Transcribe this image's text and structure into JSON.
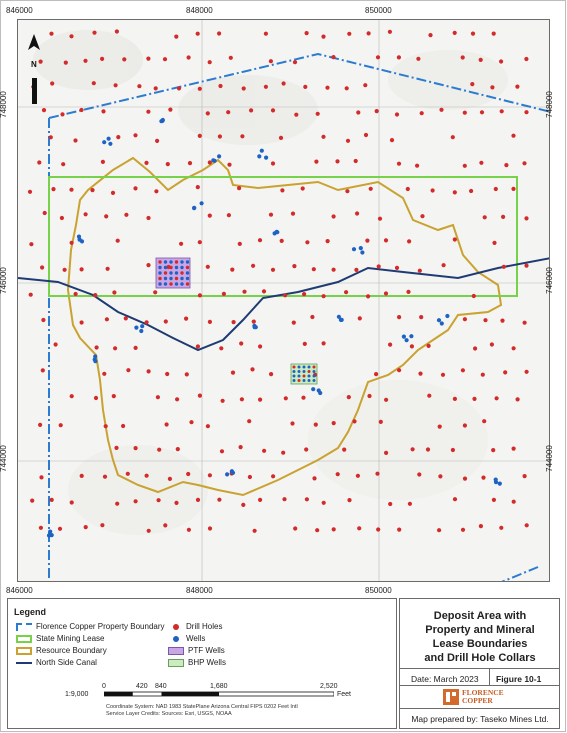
{
  "map": {
    "x_ticks": [
      "846000",
      "848000",
      "850000"
    ],
    "y_ticks_left": [
      "748000",
      "746000",
      "744000"
    ],
    "y_ticks_right": [
      "748000",
      "746000",
      "744000"
    ],
    "north_label": "N",
    "colors": {
      "property_boundary": "#2b7bd0",
      "state_lease": "#77d24a",
      "resource_boundary": "#c9a230",
      "canal": "#1f3b73",
      "drill_holes": "#d32a2a",
      "wells": "#1e63c4",
      "ptf_wells": "#c9a6e6",
      "bhp_wells": "#ccebc0"
    }
  },
  "legend": {
    "title": "Legend",
    "items": {
      "property": "Florence Copper Property Boundary",
      "state_lease": "State Mining Lease",
      "resource": "Resource Boundary",
      "canal": "North Side Canal",
      "drill_holes": "Drill Holes",
      "wells": "Wells",
      "ptf_wells": "PTF Wells",
      "bhp_wells": "BHP Wells"
    }
  },
  "scale": {
    "ratio": "1:9,000",
    "ticks": [
      "0",
      "420",
      "840",
      "1,680",
      "2,520"
    ],
    "unit": "Feet"
  },
  "credits": {
    "line1": "Coordinate System: NAD 1983 StatePlane Arizona Central FIPS 0202 Feet Intl",
    "line2": "Service Layer Credits: Sources: Esri, USGS, NOAA"
  },
  "title_block": {
    "title_lines": [
      "Deposit Area with",
      "Property and Mineral",
      "Lease Boundaries",
      "and Drill Hole Collars"
    ],
    "date": "Date: March 2023",
    "figure": "Figure 10-1",
    "logo_line1": "FLORENCE",
    "logo_line2": "COPPER",
    "prepared_by": "Map prepared by: Taseko Mines Ltd."
  }
}
